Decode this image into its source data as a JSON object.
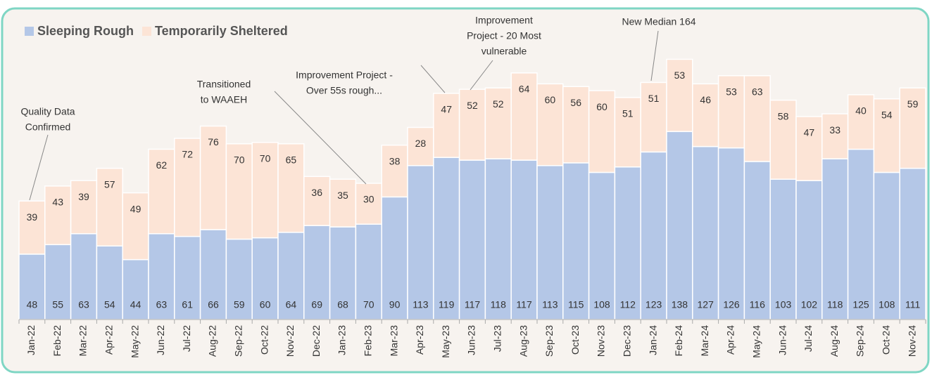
{
  "chart_data": {
    "type": "stacked_bar",
    "categories": [
      "Jan-22",
      "Feb-22",
      "Mar-22",
      "Apr-22",
      "May-22",
      "Jun-22",
      "Jul-22",
      "Aug-22",
      "Sep-22",
      "Oct-22",
      "Nov-22",
      "Dec-22",
      "Jan-23",
      "Feb-23",
      "Mar-23",
      "Apr-23",
      "May-23",
      "Jun-23",
      "Jul-23",
      "Aug-23",
      "Sep-23",
      "Oct-23",
      "Nov-23",
      "Dec-23",
      "Jan-24",
      "Feb-24",
      "Mar-24",
      "Apr-24",
      "May-24",
      "Jun-24",
      "Jul-24",
      "Aug-24",
      "Sep-24",
      "Oct-24",
      "Nov-24"
    ],
    "series": [
      {
        "name": "Sleeping Rough",
        "color": "#b4c7e7",
        "values": [
          48,
          55,
          63,
          54,
          44,
          63,
          61,
          66,
          59,
          60,
          64,
          69,
          68,
          70,
          90,
          113,
          119,
          117,
          118,
          117,
          113,
          115,
          108,
          112,
          123,
          138,
          127,
          126,
          116,
          103,
          102,
          118,
          125,
          108,
          111
        ]
      },
      {
        "name": "Temporarily Sheltered",
        "color": "#fce4d6",
        "values": [
          39,
          43,
          39,
          57,
          49,
          62,
          72,
          76,
          70,
          70,
          65,
          36,
          35,
          30,
          38,
          28,
          47,
          52,
          52,
          64,
          60,
          56,
          60,
          51,
          51,
          53,
          46,
          53,
          63,
          58,
          47,
          33,
          40,
          54,
          59
        ]
      }
    ],
    "annotations": [
      {
        "lines": [
          "Quality Data",
          "Confirmed"
        ]
      },
      {
        "lines": [
          "Transitioned",
          "to WAAEH"
        ]
      },
      {
        "lines": [
          "Improvement Project -",
          "Over 55s rough..."
        ]
      },
      {
        "lines": [
          "Improvement",
          "Project - 20 Most",
          "vulnerable"
        ]
      },
      {
        "lines": [
          "New Median 164"
        ]
      }
    ],
    "legend": "top-left"
  }
}
